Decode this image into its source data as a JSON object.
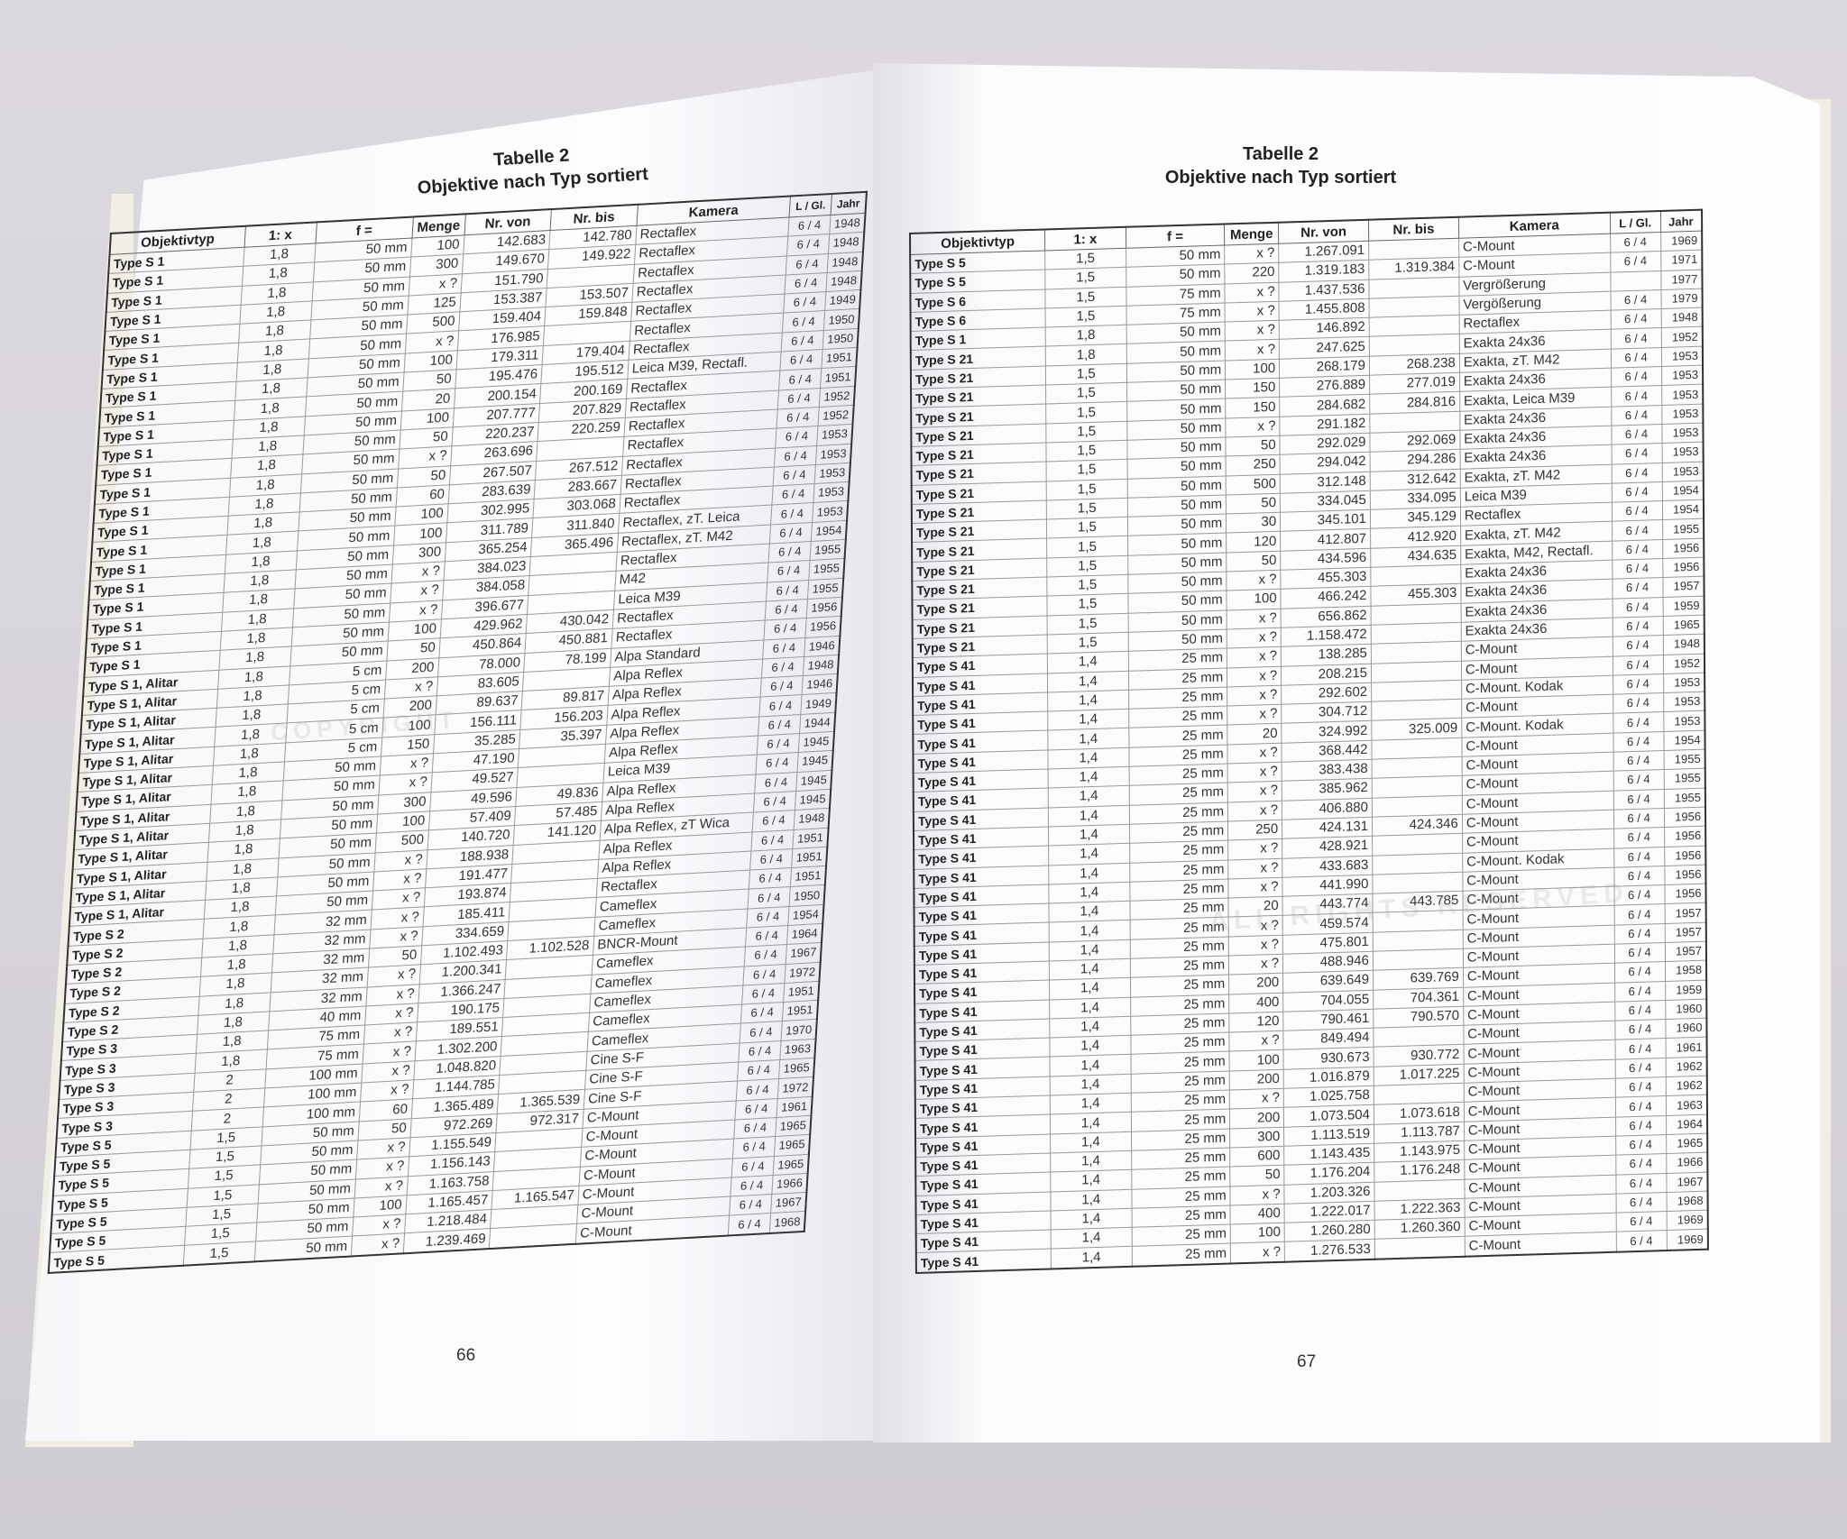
{
  "columns": [
    "Objektivtyp",
    "1: x",
    "f =",
    "Menge",
    "Nr. von",
    "Nr. bis",
    "Kamera",
    "L / Gl.",
    "Jahr"
  ],
  "watermark": {
    "line1": "COPYRIGHT",
    "line2": "ALL RIGHTS RESERVED"
  },
  "left_page": {
    "title": "Tabelle 2",
    "subtitle": "Objektive nach Typ sortiert",
    "page_number": "66",
    "rows": [
      [
        "Type S 1",
        "1,8",
        "50 mm",
        "100",
        "142.683",
        "142.780",
        "Rectaflex",
        "6 / 4",
        "1948"
      ],
      [
        "Type S 1",
        "1,8",
        "50 mm",
        "300",
        "149.670",
        "149.922",
        "Rectaflex",
        "6 / 4",
        "1948"
      ],
      [
        "Type S 1",
        "1,8",
        "50 mm",
        "x ?",
        "151.790",
        "",
        "Rectaflex",
        "6 / 4",
        "1948"
      ],
      [
        "Type S 1",
        "1,8",
        "50 mm",
        "125",
        "153.387",
        "153.507",
        "Rectaflex",
        "6 / 4",
        "1948"
      ],
      [
        "Type S 1",
        "1,8",
        "50 mm",
        "500",
        "159.404",
        "159.848",
        "Rectaflex",
        "6 / 4",
        "1949"
      ],
      [
        "Type S 1",
        "1,8",
        "50 mm",
        "x ?",
        "176.985",
        "",
        "Rectaflex",
        "6 / 4",
        "1950"
      ],
      [
        "Type S 1",
        "1,8",
        "50 mm",
        "100",
        "179.311",
        "179.404",
        "Rectaflex",
        "6 / 4",
        "1950"
      ],
      [
        "Type S 1",
        "1,8",
        "50 mm",
        "50",
        "195.476",
        "195.512",
        "Leica M39, Rectafl.",
        "6 / 4",
        "1951"
      ],
      [
        "Type S 1",
        "1,8",
        "50 mm",
        "20",
        "200.154",
        "200.169",
        "Rectaflex",
        "6 / 4",
        "1951"
      ],
      [
        "Type S 1",
        "1,8",
        "50 mm",
        "100",
        "207.777",
        "207.829",
        "Rectaflex",
        "6 / 4",
        "1952"
      ],
      [
        "Type S 1",
        "1,8",
        "50 mm",
        "50",
        "220.237",
        "220.259",
        "Rectaflex",
        "6 / 4",
        "1952"
      ],
      [
        "Type S 1",
        "1,8",
        "50 mm",
        "x ?",
        "263.696",
        "",
        "Rectaflex",
        "6 / 4",
        "1953"
      ],
      [
        "Type S 1",
        "1,8",
        "50 mm",
        "50",
        "267.507",
        "267.512",
        "Rectaflex",
        "6 / 4",
        "1953"
      ],
      [
        "Type S 1",
        "1,8",
        "50 mm",
        "60",
        "283.639",
        "283.667",
        "Rectaflex",
        "6 / 4",
        "1953"
      ],
      [
        "Type S 1",
        "1,8",
        "50 mm",
        "100",
        "302.995",
        "303.068",
        "Rectaflex",
        "6 / 4",
        "1953"
      ],
      [
        "Type S 1",
        "1,8",
        "50 mm",
        "100",
        "311.789",
        "311.840",
        "Rectaflex, zT. Leica",
        "6 / 4",
        "1953"
      ],
      [
        "Type S 1",
        "1,8",
        "50 mm",
        "300",
        "365.254",
        "365.496",
        "Rectaflex, zT. M42",
        "6 / 4",
        "1954"
      ],
      [
        "Type S 1",
        "1,8",
        "50 mm",
        "x ?",
        "384.023",
        "",
        "Rectaflex",
        "6 / 4",
        "1955"
      ],
      [
        "Type S 1",
        "1,8",
        "50 mm",
        "x ?",
        "384.058",
        "",
        "M42",
        "6 / 4",
        "1955"
      ],
      [
        "Type S 1",
        "1,8",
        "50 mm",
        "x ?",
        "396.677",
        "",
        "Leica M39",
        "6 / 4",
        "1955"
      ],
      [
        "Type S 1",
        "1,8",
        "50 mm",
        "100",
        "429.962",
        "430.042",
        "Rectaflex",
        "6 / 4",
        "1956"
      ],
      [
        "Type S 1",
        "1,8",
        "50 mm",
        "50",
        "450.864",
        "450.881",
        "Rectaflex",
        "6 / 4",
        "1956"
      ],
      [
        "Type S 1, Alitar",
        "1,8",
        "5 cm",
        "200",
        "78.000",
        "78.199",
        "Alpa Standard",
        "6 / 4",
        "1946"
      ],
      [
        "Type S 1, Alitar",
        "1,8",
        "5 cm",
        "x ?",
        "83.605",
        "",
        "Alpa Reflex",
        "6 / 4",
        "1948"
      ],
      [
        "Type S 1, Alitar",
        "1,8",
        "5 cm",
        "200",
        "89.637",
        "89.817",
        "Alpa Reflex",
        "6 / 4",
        "1946"
      ],
      [
        "Type S 1, Alitar",
        "1,8",
        "5 cm",
        "100",
        "156.111",
        "156.203",
        "Alpa Reflex",
        "6 / 4",
        "1949"
      ],
      [
        "Type S 1, Alitar",
        "1,8",
        "5 cm",
        "150",
        "35.285",
        "35.397",
        "Alpa Reflex",
        "6 / 4",
        "1944"
      ],
      [
        "Type S 1, Alitar",
        "1,8",
        "50 mm",
        "x ?",
        "47.190",
        "",
        "Alpa Reflex",
        "6 / 4",
        "1945"
      ],
      [
        "Type S 1, Alitar",
        "1,8",
        "50 mm",
        "x ?",
        "49.527",
        "",
        "Leica M39",
        "6 / 4",
        "1945"
      ],
      [
        "Type S 1, Alitar",
        "1,8",
        "50 mm",
        "300",
        "49.596",
        "49.836",
        "Alpa Reflex",
        "6 / 4",
        "1945"
      ],
      [
        "Type S 1, Alitar",
        "1,8",
        "50 mm",
        "100",
        "57.409",
        "57.485",
        "Alpa Reflex",
        "6 / 4",
        "1945"
      ],
      [
        "Type S 1, Alitar",
        "1,8",
        "50 mm",
        "500",
        "140.720",
        "141.120",
        "Alpa Reflex, zT Wica",
        "6 / 4",
        "1948"
      ],
      [
        "Type S 1, Alitar",
        "1,8",
        "50 mm",
        "x ?",
        "188.938",
        "",
        "Alpa Reflex",
        "6 / 4",
        "1951"
      ],
      [
        "Type S 1, Alitar",
        "1,8",
        "50 mm",
        "x ?",
        "191.477",
        "",
        "Alpa Reflex",
        "6 / 4",
        "1951"
      ],
      [
        "Type S 1, Alitar",
        "1,8",
        "50 mm",
        "x ?",
        "193.874",
        "",
        "Rectaflex",
        "6 / 4",
        "1951"
      ],
      [
        "Type S 2",
        "1,8",
        "32 mm",
        "x ?",
        "185.411",
        "",
        "Cameflex",
        "6 / 4",
        "1950"
      ],
      [
        "Type S 2",
        "1,8",
        "32 mm",
        "x ?",
        "334.659",
        "",
        "Cameflex",
        "6 / 4",
        "1954"
      ],
      [
        "Type S 2",
        "1,8",
        "32 mm",
        "50",
        "1.102.493",
        "1.102.528",
        "BNCR-Mount",
        "6 / 4",
        "1964"
      ],
      [
        "Type S 2",
        "1,8",
        "32 mm",
        "x ?",
        "1.200.341",
        "",
        "Cameflex",
        "6 / 4",
        "1967"
      ],
      [
        "Type S 2",
        "1,8",
        "32 mm",
        "x ?",
        "1.366.247",
        "",
        "Cameflex",
        "6 / 4",
        "1972"
      ],
      [
        "Type S 2",
        "1,8",
        "40 mm",
        "x ?",
        "190.175",
        "",
        "Cameflex",
        "6 / 4",
        "1951"
      ],
      [
        "Type S 3",
        "1,8",
        "75 mm",
        "x ?",
        "189.551",
        "",
        "Cameflex",
        "6 / 4",
        "1951"
      ],
      [
        "Type S 3",
        "1,8",
        "75 mm",
        "x ?",
        "1.302.200",
        "",
        "Cameflex",
        "6 / 4",
        "1970"
      ],
      [
        "Type S 3",
        "2",
        "100 mm",
        "x ?",
        "1.048.820",
        "",
        "Cine S-F",
        "6 / 4",
        "1963"
      ],
      [
        "Type S 3",
        "2",
        "100 mm",
        "x ?",
        "1.144.785",
        "",
        "Cine S-F",
        "6 / 4",
        "1965"
      ],
      [
        "Type S 3",
        "2",
        "100 mm",
        "60",
        "1.365.489",
        "1.365.539",
        "Cine S-F",
        "6 / 4",
        "1972"
      ],
      [
        "Type S 5",
        "1,5",
        "50 mm",
        "50",
        "972.269",
        "972.317",
        "C-Mount",
        "6 / 4",
        "1961"
      ],
      [
        "Type S 5",
        "1,5",
        "50 mm",
        "x ?",
        "1.155.549",
        "",
        "C-Mount",
        "6 / 4",
        "1965"
      ],
      [
        "Type S 5",
        "1,5",
        "50 mm",
        "x ?",
        "1.156.143",
        "",
        "C-Mount",
        "6 / 4",
        "1965"
      ],
      [
        "Type S 5",
        "1,5",
        "50 mm",
        "x ?",
        "1.163.758",
        "",
        "C-Mount",
        "6 / 4",
        "1965"
      ],
      [
        "Type S 5",
        "1,5",
        "50 mm",
        "100",
        "1.165.457",
        "1.165.547",
        "C-Mount",
        "6 / 4",
        "1966"
      ],
      [
        "Type S 5",
        "1,5",
        "50 mm",
        "x ?",
        "1.218.484",
        "",
        "C-Mount",
        "6 / 4",
        "1967"
      ],
      [
        "Type S 5",
        "1,5",
        "50 mm",
        "x ?",
        "1.239.469",
        "",
        "C-Mount",
        "6 / 4",
        "1968"
      ]
    ]
  },
  "right_page": {
    "title": "Tabelle 2",
    "subtitle": "Objektive nach Typ sortiert",
    "page_number": "67",
    "rows": [
      [
        "Type S 5",
        "1,5",
        "50 mm",
        "x ?",
        "1.267.091",
        "",
        "C-Mount",
        "6 / 4",
        "1969"
      ],
      [
        "Type S 5",
        "1,5",
        "50 mm",
        "220",
        "1.319.183",
        "1.319.384",
        "C-Mount",
        "6 / 4",
        "1971"
      ],
      [
        "Type S 6",
        "1,5",
        "75 mm",
        "x ?",
        "1.437.536",
        "",
        "Vergrößerung",
        "",
        "1977"
      ],
      [
        "Type S 6",
        "1,5",
        "75 mm",
        "x ?",
        "1.455.808",
        "",
        "Vergößerung",
        "6 / 4",
        "1979"
      ],
      [
        "Type S 1",
        "1,8",
        "50 mm",
        "x ?",
        "146.892",
        "",
        "Rectaflex",
        "6 / 4",
        "1948"
      ],
      [
        "Type S 21",
        "1,8",
        "50 mm",
        "x ?",
        "247.625",
        "",
        "Exakta 24x36",
        "6 / 4",
        "1952"
      ],
      [
        "Type S 21",
        "1,5",
        "50 mm",
        "100",
        "268.179",
        "268.238",
        "Exakta, zT. M42",
        "6 / 4",
        "1953"
      ],
      [
        "Type S 21",
        "1,5",
        "50 mm",
        "150",
        "276.889",
        "277.019",
        "Exakta 24x36",
        "6 / 4",
        "1953"
      ],
      [
        "Type S 21",
        "1,5",
        "50 mm",
        "150",
        "284.682",
        "284.816",
        "Exakta, Leica M39",
        "6 / 4",
        "1953"
      ],
      [
        "Type S 21",
        "1,5",
        "50 mm",
        "x ?",
        "291.182",
        "",
        "Exakta 24x36",
        "6 / 4",
        "1953"
      ],
      [
        "Type S 21",
        "1,5",
        "50 mm",
        "50",
        "292.029",
        "292.069",
        "Exakta 24x36",
        "6 / 4",
        "1953"
      ],
      [
        "Type S 21",
        "1,5",
        "50 mm",
        "250",
        "294.042",
        "294.286",
        "Exakta 24x36",
        "6 / 4",
        "1953"
      ],
      [
        "Type S 21",
        "1,5",
        "50 mm",
        "500",
        "312.148",
        "312.642",
        "Exakta, zT. M42",
        "6 / 4",
        "1953"
      ],
      [
        "Type S 21",
        "1,5",
        "50 mm",
        "50",
        "334.045",
        "334.095",
        "Leica M39",
        "6 / 4",
        "1954"
      ],
      [
        "Type S 21",
        "1,5",
        "50 mm",
        "30",
        "345.101",
        "345.129",
        "Rectaflex",
        "6 / 4",
        "1954"
      ],
      [
        "Type S 21",
        "1,5",
        "50 mm",
        "120",
        "412.807",
        "412.920",
        "Exakta, zT. M42",
        "6 / 4",
        "1955"
      ],
      [
        "Type S 21",
        "1,5",
        "50 mm",
        "50",
        "434.596",
        "434.635",
        "Exakta, M42, Rectafl.",
        "6 / 4",
        "1956"
      ],
      [
        "Type S 21",
        "1,5",
        "50 mm",
        "x ?",
        "455.303",
        "",
        "Exakta 24x36",
        "6 / 4",
        "1956"
      ],
      [
        "Type S 21",
        "1,5",
        "50 mm",
        "100",
        "466.242",
        "455.303",
        "Exakta 24x36",
        "6 / 4",
        "1957"
      ],
      [
        "Type S 21",
        "1,5",
        "50 mm",
        "x ?",
        "656.862",
        "",
        "Exakta 24x36",
        "6 / 4",
        "1959"
      ],
      [
        "Type S 21",
        "1,5",
        "50 mm",
        "x ?",
        "1.158.472",
        "",
        "Exakta 24x36",
        "6 / 4",
        "1965"
      ],
      [
        "Type S 41",
        "1,4",
        "25 mm",
        "x ?",
        "138.285",
        "",
        "C-Mount",
        "6 / 4",
        "1948"
      ],
      [
        "Type S 41",
        "1,4",
        "25 mm",
        "x ?",
        "208.215",
        "",
        "C-Mount",
        "6 / 4",
        "1952"
      ],
      [
        "Type S 41",
        "1,4",
        "25 mm",
        "x ?",
        "292.602",
        "",
        "C-Mount. Kodak",
        "6 / 4",
        "1953"
      ],
      [
        "Type S 41",
        "1,4",
        "25 mm",
        "x ?",
        "304.712",
        "",
        "C-Mount",
        "6 / 4",
        "1953"
      ],
      [
        "Type S 41",
        "1,4",
        "25 mm",
        "20",
        "324.992",
        "325.009",
        "C-Mount. Kodak",
        "6 / 4",
        "1953"
      ],
      [
        "Type S 41",
        "1,4",
        "25 mm",
        "x ?",
        "368.442",
        "",
        "C-Mount",
        "6 / 4",
        "1954"
      ],
      [
        "Type S 41",
        "1,4",
        "25 mm",
        "x ?",
        "383.438",
        "",
        "C-Mount",
        "6 / 4",
        "1955"
      ],
      [
        "Type S 41",
        "1,4",
        "25 mm",
        "x ?",
        "385.962",
        "",
        "C-Mount",
        "6 / 4",
        "1955"
      ],
      [
        "Type S 41",
        "1,4",
        "25 mm",
        "x ?",
        "406.880",
        "",
        "C-Mount",
        "6 / 4",
        "1955"
      ],
      [
        "Type S 41",
        "1,4",
        "25 mm",
        "250",
        "424.131",
        "424.346",
        "C-Mount",
        "6 / 4",
        "1956"
      ],
      [
        "Type S 41",
        "1,4",
        "25 mm",
        "x ?",
        "428.921",
        "",
        "C-Mount",
        "6 / 4",
        "1956"
      ],
      [
        "Type S 41",
        "1,4",
        "25 mm",
        "x ?",
        "433.683",
        "",
        "C-Mount. Kodak",
        "6 / 4",
        "1956"
      ],
      [
        "Type S 41",
        "1,4",
        "25 mm",
        "x ?",
        "441.990",
        "",
        "C-Mount",
        "6 / 4",
        "1956"
      ],
      [
        "Type S 41",
        "1,4",
        "25 mm",
        "20",
        "443.774",
        "443.785",
        "C-Mount",
        "6 / 4",
        "1956"
      ],
      [
        "Type S 41",
        "1,4",
        "25 mm",
        "x ?",
        "459.574",
        "",
        "C-Mount",
        "6 / 4",
        "1957"
      ],
      [
        "Type S 41",
        "1,4",
        "25 mm",
        "x ?",
        "475.801",
        "",
        "C-Mount",
        "6 / 4",
        "1957"
      ],
      [
        "Type S 41",
        "1,4",
        "25 mm",
        "x ?",
        "488.946",
        "",
        "C-Mount",
        "6 / 4",
        "1957"
      ],
      [
        "Type S 41",
        "1,4",
        "25 mm",
        "200",
        "639.649",
        "639.769",
        "C-Mount",
        "6 / 4",
        "1958"
      ],
      [
        "Type S 41",
        "1,4",
        "25 mm",
        "400",
        "704.055",
        "704.361",
        "C-Mount",
        "6 / 4",
        "1959"
      ],
      [
        "Type S 41",
        "1,4",
        "25 mm",
        "120",
        "790.461",
        "790.570",
        "C-Mount",
        "6 / 4",
        "1960"
      ],
      [
        "Type S 41",
        "1,4",
        "25 mm",
        "x ?",
        "849.494",
        "",
        "C-Mount",
        "6 / 4",
        "1960"
      ],
      [
        "Type S 41",
        "1,4",
        "25 mm",
        "100",
        "930.673",
        "930.772",
        "C-Mount",
        "6 / 4",
        "1961"
      ],
      [
        "Type S 41",
        "1,4",
        "25 mm",
        "200",
        "1.016.879",
        "1.017.225",
        "C-Mount",
        "6 / 4",
        "1962"
      ],
      [
        "Type S 41",
        "1,4",
        "25 mm",
        "x ?",
        "1.025.758",
        "",
        "C-Mount",
        "6 / 4",
        "1962"
      ],
      [
        "Type S 41",
        "1,4",
        "25 mm",
        "200",
        "1.073.504",
        "1.073.618",
        "C-Mount",
        "6 / 4",
        "1963"
      ],
      [
        "Type S 41",
        "1,4",
        "25 mm",
        "300",
        "1.113.519",
        "1.113.787",
        "C-Mount",
        "6 / 4",
        "1964"
      ],
      [
        "Type S 41",
        "1,4",
        "25 mm",
        "600",
        "1.143.435",
        "1.143.975",
        "C-Mount",
        "6 / 4",
        "1965"
      ],
      [
        "Type S 41",
        "1,4",
        "25 mm",
        "50",
        "1.176.204",
        "1.176.248",
        "C-Mount",
        "6 / 4",
        "1966"
      ],
      [
        "Type S 41",
        "1,4",
        "25 mm",
        "x ?",
        "1.203.326",
        "",
        "C-Mount",
        "6 / 4",
        "1967"
      ],
      [
        "Type S 41",
        "1,4",
        "25 mm",
        "400",
        "1.222.017",
        "1.222.363",
        "C-Mount",
        "6 / 4",
        "1968"
      ],
      [
        "Type S 41",
        "1,4",
        "25 mm",
        "100",
        "1.260.280",
        "1.260.360",
        "C-Mount",
        "6 / 4",
        "1969"
      ],
      [
        "Type S 41",
        "1,4",
        "25 mm",
        "x ?",
        "1.276.533",
        "",
        "C-Mount",
        "6 / 4",
        "1969"
      ]
    ]
  }
}
